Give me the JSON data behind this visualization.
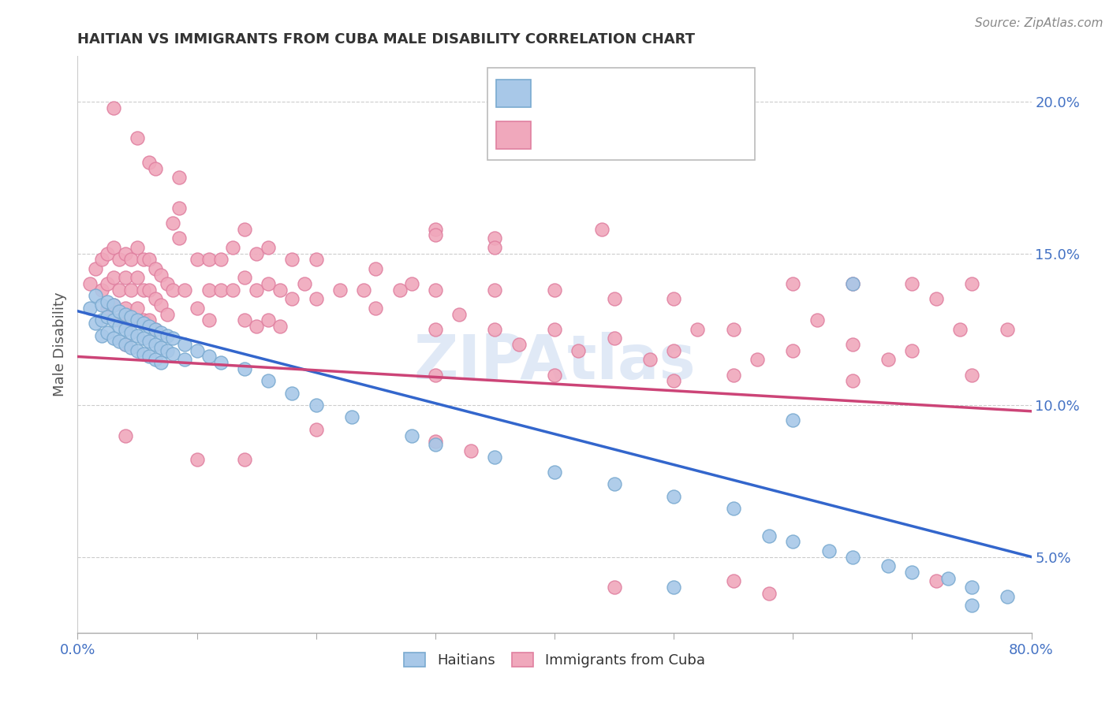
{
  "title": "HAITIAN VS IMMIGRANTS FROM CUBA MALE DISABILITY CORRELATION CHART",
  "source": "Source: ZipAtlas.com",
  "ylabel": "Male Disability",
  "xlim": [
    0.0,
    0.8
  ],
  "ylim": [
    0.025,
    0.215
  ],
  "yticks": [
    0.05,
    0.1,
    0.15,
    0.2
  ],
  "ytick_labels": [
    "5.0%",
    "10.0%",
    "15.0%",
    "20.0%"
  ],
  "blue_color": "#A8C8E8",
  "pink_color": "#F0A8BC",
  "blue_edge": "#7AAAD0",
  "pink_edge": "#E080A0",
  "line_blue": "#3366CC",
  "line_pink": "#CC4477",
  "text_blue": "#4472C4",
  "watermark": "ZIPAtlas",
  "blue_scatter": [
    [
      0.01,
      0.132
    ],
    [
      0.015,
      0.136
    ],
    [
      0.015,
      0.127
    ],
    [
      0.02,
      0.133
    ],
    [
      0.02,
      0.128
    ],
    [
      0.02,
      0.123
    ],
    [
      0.025,
      0.134
    ],
    [
      0.025,
      0.129
    ],
    [
      0.025,
      0.124
    ],
    [
      0.03,
      0.133
    ],
    [
      0.03,
      0.128
    ],
    [
      0.03,
      0.122
    ],
    [
      0.035,
      0.131
    ],
    [
      0.035,
      0.126
    ],
    [
      0.035,
      0.121
    ],
    [
      0.04,
      0.13
    ],
    [
      0.04,
      0.125
    ],
    [
      0.04,
      0.12
    ],
    [
      0.045,
      0.129
    ],
    [
      0.045,
      0.124
    ],
    [
      0.045,
      0.119
    ],
    [
      0.05,
      0.128
    ],
    [
      0.05,
      0.123
    ],
    [
      0.05,
      0.118
    ],
    [
      0.055,
      0.127
    ],
    [
      0.055,
      0.122
    ],
    [
      0.055,
      0.117
    ],
    [
      0.06,
      0.126
    ],
    [
      0.06,
      0.121
    ],
    [
      0.06,
      0.116
    ],
    [
      0.065,
      0.125
    ],
    [
      0.065,
      0.12
    ],
    [
      0.065,
      0.115
    ],
    [
      0.07,
      0.124
    ],
    [
      0.07,
      0.119
    ],
    [
      0.07,
      0.114
    ],
    [
      0.075,
      0.123
    ],
    [
      0.075,
      0.118
    ],
    [
      0.08,
      0.122
    ],
    [
      0.08,
      0.117
    ],
    [
      0.09,
      0.12
    ],
    [
      0.09,
      0.115
    ],
    [
      0.1,
      0.118
    ],
    [
      0.11,
      0.116
    ],
    [
      0.12,
      0.114
    ],
    [
      0.14,
      0.112
    ],
    [
      0.16,
      0.108
    ],
    [
      0.18,
      0.104
    ],
    [
      0.2,
      0.1
    ],
    [
      0.23,
      0.096
    ],
    [
      0.28,
      0.09
    ],
    [
      0.3,
      0.087
    ],
    [
      0.35,
      0.083
    ],
    [
      0.4,
      0.078
    ],
    [
      0.45,
      0.074
    ],
    [
      0.5,
      0.07
    ],
    [
      0.5,
      0.04
    ],
    [
      0.55,
      0.066
    ],
    [
      0.58,
      0.057
    ],
    [
      0.6,
      0.055
    ],
    [
      0.6,
      0.095
    ],
    [
      0.63,
      0.052
    ],
    [
      0.65,
      0.05
    ],
    [
      0.65,
      0.14
    ],
    [
      0.68,
      0.047
    ],
    [
      0.7,
      0.045
    ],
    [
      0.73,
      0.043
    ],
    [
      0.75,
      0.04
    ],
    [
      0.78,
      0.037
    ],
    [
      0.75,
      0.034
    ]
  ],
  "pink_scatter": [
    [
      0.01,
      0.14
    ],
    [
      0.015,
      0.145
    ],
    [
      0.02,
      0.148
    ],
    [
      0.02,
      0.138
    ],
    [
      0.025,
      0.15
    ],
    [
      0.025,
      0.14
    ],
    [
      0.025,
      0.132
    ],
    [
      0.03,
      0.152
    ],
    [
      0.03,
      0.142
    ],
    [
      0.03,
      0.133
    ],
    [
      0.035,
      0.148
    ],
    [
      0.035,
      0.138
    ],
    [
      0.035,
      0.128
    ],
    [
      0.04,
      0.15
    ],
    [
      0.04,
      0.142
    ],
    [
      0.04,
      0.132
    ],
    [
      0.04,
      0.12
    ],
    [
      0.04,
      0.09
    ],
    [
      0.045,
      0.148
    ],
    [
      0.045,
      0.138
    ],
    [
      0.045,
      0.128
    ],
    [
      0.05,
      0.152
    ],
    [
      0.05,
      0.142
    ],
    [
      0.05,
      0.132
    ],
    [
      0.055,
      0.148
    ],
    [
      0.055,
      0.138
    ],
    [
      0.055,
      0.128
    ],
    [
      0.06,
      0.148
    ],
    [
      0.06,
      0.138
    ],
    [
      0.06,
      0.128
    ],
    [
      0.065,
      0.145
    ],
    [
      0.065,
      0.135
    ],
    [
      0.065,
      0.125
    ],
    [
      0.07,
      0.143
    ],
    [
      0.07,
      0.133
    ],
    [
      0.075,
      0.14
    ],
    [
      0.075,
      0.13
    ],
    [
      0.08,
      0.16
    ],
    [
      0.08,
      0.138
    ],
    [
      0.085,
      0.175
    ],
    [
      0.085,
      0.165
    ],
    [
      0.085,
      0.155
    ],
    [
      0.09,
      0.138
    ],
    [
      0.1,
      0.148
    ],
    [
      0.1,
      0.132
    ],
    [
      0.1,
      0.082
    ],
    [
      0.11,
      0.148
    ],
    [
      0.11,
      0.138
    ],
    [
      0.11,
      0.128
    ],
    [
      0.12,
      0.148
    ],
    [
      0.12,
      0.138
    ],
    [
      0.13,
      0.152
    ],
    [
      0.13,
      0.138
    ],
    [
      0.14,
      0.158
    ],
    [
      0.14,
      0.142
    ],
    [
      0.14,
      0.128
    ],
    [
      0.14,
      0.082
    ],
    [
      0.15,
      0.15
    ],
    [
      0.15,
      0.138
    ],
    [
      0.15,
      0.126
    ],
    [
      0.16,
      0.152
    ],
    [
      0.16,
      0.14
    ],
    [
      0.16,
      0.128
    ],
    [
      0.17,
      0.138
    ],
    [
      0.17,
      0.126
    ],
    [
      0.18,
      0.148
    ],
    [
      0.18,
      0.135
    ],
    [
      0.19,
      0.14
    ],
    [
      0.2,
      0.148
    ],
    [
      0.2,
      0.135
    ],
    [
      0.2,
      0.092
    ],
    [
      0.22,
      0.138
    ],
    [
      0.24,
      0.138
    ],
    [
      0.25,
      0.145
    ],
    [
      0.25,
      0.132
    ],
    [
      0.27,
      0.138
    ],
    [
      0.28,
      0.14
    ],
    [
      0.3,
      0.158
    ],
    [
      0.3,
      0.138
    ],
    [
      0.3,
      0.125
    ],
    [
      0.3,
      0.11
    ],
    [
      0.3,
      0.088
    ],
    [
      0.32,
      0.13
    ],
    [
      0.33,
      0.085
    ],
    [
      0.35,
      0.155
    ],
    [
      0.35,
      0.138
    ],
    [
      0.35,
      0.125
    ],
    [
      0.37,
      0.12
    ],
    [
      0.4,
      0.138
    ],
    [
      0.4,
      0.125
    ],
    [
      0.4,
      0.11
    ],
    [
      0.42,
      0.118
    ],
    [
      0.44,
      0.158
    ],
    [
      0.45,
      0.135
    ],
    [
      0.45,
      0.122
    ],
    [
      0.45,
      0.04
    ],
    [
      0.48,
      0.115
    ],
    [
      0.5,
      0.135
    ],
    [
      0.5,
      0.118
    ],
    [
      0.5,
      0.108
    ],
    [
      0.52,
      0.125
    ],
    [
      0.55,
      0.125
    ],
    [
      0.55,
      0.11
    ],
    [
      0.55,
      0.042
    ],
    [
      0.57,
      0.115
    ],
    [
      0.58,
      0.038
    ],
    [
      0.6,
      0.14
    ],
    [
      0.6,
      0.118
    ],
    [
      0.62,
      0.128
    ],
    [
      0.65,
      0.14
    ],
    [
      0.65,
      0.12
    ],
    [
      0.65,
      0.108
    ],
    [
      0.68,
      0.115
    ],
    [
      0.7,
      0.14
    ],
    [
      0.7,
      0.118
    ],
    [
      0.72,
      0.135
    ],
    [
      0.72,
      0.042
    ],
    [
      0.74,
      0.125
    ],
    [
      0.75,
      0.14
    ],
    [
      0.75,
      0.11
    ],
    [
      0.78,
      0.125
    ],
    [
      0.03,
      0.198
    ],
    [
      0.05,
      0.188
    ],
    [
      0.06,
      0.18
    ],
    [
      0.065,
      0.178
    ],
    [
      0.3,
      0.156
    ],
    [
      0.35,
      0.152
    ]
  ],
  "blue_line_x": [
    0.0,
    0.8
  ],
  "blue_line_y": [
    0.131,
    0.05
  ],
  "pink_line_x": [
    0.0,
    0.8
  ],
  "pink_line_y": [
    0.116,
    0.098
  ]
}
